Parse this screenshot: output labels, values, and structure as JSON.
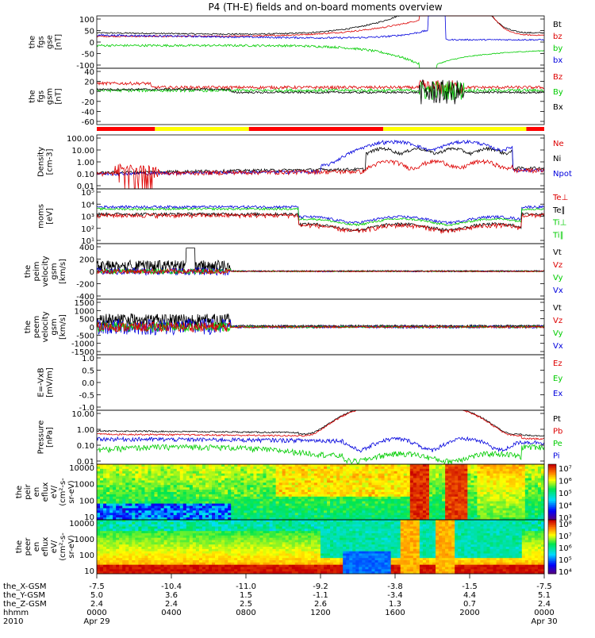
{
  "chart_data": {
    "type": "line",
    "title": "P4 (TH-E) fields and on-board moments overview",
    "x_ticks": [
      "0000",
      "0400",
      "0800",
      "1200",
      "1600",
      "2000",
      "0000"
    ],
    "x_date_labels": [
      "Apr 29",
      "Apr 30"
    ],
    "year_label": "2010",
    "ephemeris": [
      {
        "label": "the_X-GSM",
        "values": [
          "-7.5",
          "-10.4",
          "-11.0",
          "-9.2",
          "-3.8",
          "-1.5",
          "-7.5"
        ]
      },
      {
        "label": "the_Y-GSM",
        "values": [
          "5.0",
          "3.6",
          "1.5",
          "-1.1",
          "-3.4",
          "4.4",
          "5.1"
        ]
      },
      {
        "label": "the_Z-GSM",
        "values": [
          "2.4",
          "2.4",
          "2.5",
          "2.6",
          "1.3",
          "0.7",
          "2.4"
        ]
      },
      {
        "label": "hhmm",
        "values": [
          "0000",
          "0400",
          "0800",
          "1200",
          "1600",
          "2000",
          "0000"
        ]
      }
    ],
    "panels": [
      {
        "id": "fgs-gse",
        "ylabel": [
          "the",
          "fgs",
          "gse",
          "[nT]"
        ],
        "yticks": [
          "100",
          "50",
          "0",
          "-50",
          "-100"
        ],
        "legend": [
          {
            "label": "Bt",
            "color": "#000000"
          },
          {
            "label": "bz",
            "color": "#dd0000"
          },
          {
            "label": "by",
            "color": "#00cc00"
          },
          {
            "label": "bx",
            "color": "#0000dd"
          }
        ]
      },
      {
        "id": "fgs-gsm",
        "ylabel": [
          "the",
          "fgs",
          "gsm",
          "[nT]"
        ],
        "yticks": [
          "40",
          "20",
          "0",
          "-20",
          "-40",
          "-60"
        ],
        "legend": [
          {
            "label": "Bz",
            "color": "#dd0000"
          },
          {
            "label": "By",
            "color": "#00cc00"
          },
          {
            "label": "Bx",
            "color": "#000000"
          }
        ]
      },
      {
        "id": "density",
        "ylabel": [
          "Density",
          "[cm-3]"
        ],
        "yticks": [
          "100.00",
          "10.00",
          "1.00",
          "0.10",
          "0.01"
        ],
        "legend": [
          {
            "label": "Ne",
            "color": "#dd0000"
          },
          {
            "label": "Ni",
            "color": "#000000"
          },
          {
            "label": "Npot",
            "color": "#0000dd"
          }
        ]
      },
      {
        "id": "temperature",
        "ylabel": [
          "moms",
          "[eV]"
        ],
        "yticks": [
          "10⁵",
          "10⁴",
          "10³",
          "10²",
          "10¹"
        ],
        "legend": [
          {
            "label": "Te⊥",
            "color": "#dd0000"
          },
          {
            "label": "Te∥",
            "color": "#000000"
          },
          {
            "label": "Ti⊥",
            "color": "#00cc00"
          },
          {
            "label": "Ti∥",
            "color": "#00cc00"
          }
        ]
      },
      {
        "id": "peim-velocity",
        "ylabel": [
          "the",
          "peim",
          "velocity",
          "gsm",
          "[km/s]"
        ],
        "yticks": [
          "400",
          "200",
          "0",
          "-200",
          "-400"
        ],
        "legend": [
          {
            "label": "Vt",
            "color": "#000000"
          },
          {
            "label": "Vz",
            "color": "#dd0000"
          },
          {
            "label": "Vy",
            "color": "#00cc00"
          },
          {
            "label": "Vx",
            "color": "#0000dd"
          }
        ]
      },
      {
        "id": "peem-velocity",
        "ylabel": [
          "the",
          "peem",
          "velocity",
          "gsm",
          "[km/s]"
        ],
        "yticks": [
          "1500",
          "1000",
          "500",
          "0",
          "-500",
          "-1000",
          "-1500"
        ],
        "legend": [
          {
            "label": "Vt",
            "color": "#000000"
          },
          {
            "label": "Vz",
            "color": "#dd0000"
          },
          {
            "label": "Vy",
            "color": "#00cc00"
          },
          {
            "label": "Vx",
            "color": "#0000dd"
          }
        ]
      },
      {
        "id": "e-field",
        "ylabel": [
          "E=-VxB",
          "[mV/m]"
        ],
        "yticks": [
          "1.0",
          "0.5",
          "0.0",
          "-0.5",
          "-1.0"
        ],
        "legend": [
          {
            "label": "Ez",
            "color": "#dd0000"
          },
          {
            "label": "Ey",
            "color": "#00cc00"
          },
          {
            "label": "Ex",
            "color": "#0000dd"
          }
        ]
      },
      {
        "id": "pressure",
        "ylabel": [
          "Pressure",
          "[nPa]"
        ],
        "yticks": [
          "10.00",
          "1.00",
          "0.10",
          "0.01"
        ],
        "legend": [
          {
            "label": "Pt",
            "color": "#000000"
          },
          {
            "label": "Pb",
            "color": "#dd0000"
          },
          {
            "label": "Pe",
            "color": "#00cc00"
          },
          {
            "label": "Pi",
            "color": "#0000dd"
          }
        ]
      },
      {
        "id": "peir-spec",
        "ylabel": [
          "the",
          "peir",
          "en",
          "eflux",
          "eV/",
          "(cm²-s-",
          "sr-eV)"
        ],
        "yticks": [
          "10000",
          "1000",
          "100",
          "10"
        ],
        "colorbar": [
          "10⁷",
          "10⁶",
          "10⁵",
          "10⁴",
          "10³"
        ]
      },
      {
        "id": "peer-spec",
        "ylabel": [
          "the",
          "peer",
          "en",
          "eflux",
          "eV/",
          "(cm²-s-",
          "sr-eV)"
        ],
        "yticks": [
          "10000",
          "1000",
          "100",
          "10"
        ],
        "colorbar": [
          "10⁸",
          "10⁷",
          "10⁶",
          "10⁵",
          "10⁴"
        ]
      }
    ]
  }
}
